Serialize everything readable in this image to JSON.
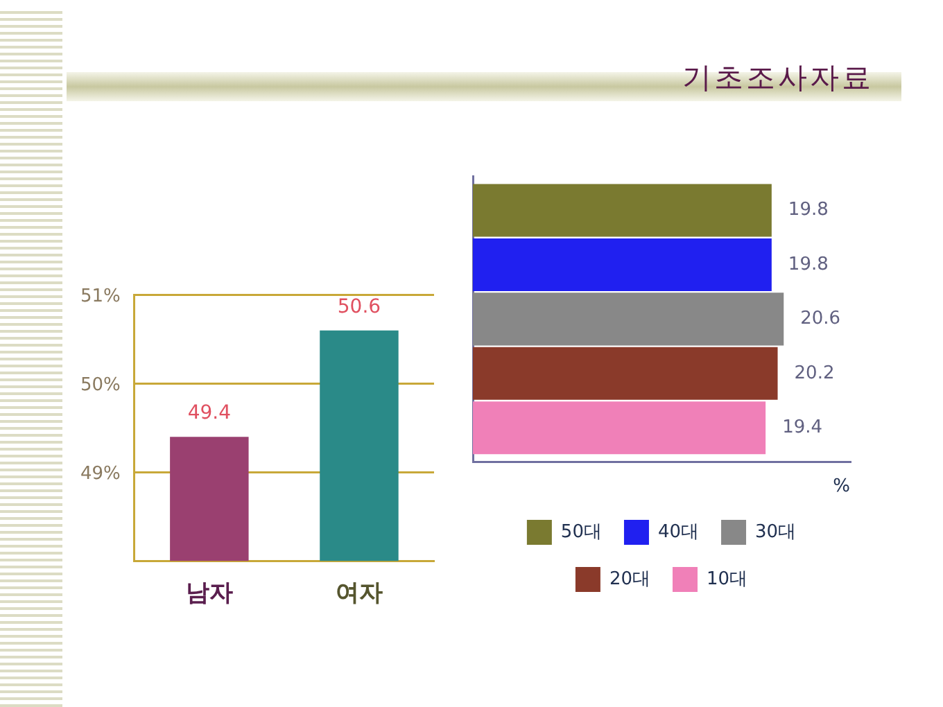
{
  "chart_data": [
    {
      "type": "bar",
      "categories": [
        "남자",
        "여자"
      ],
      "values": [
        49.4,
        50.6
      ],
      "colors": [
        "#9a4070",
        "#2a8a88"
      ],
      "ylim": [
        48,
        51
      ],
      "yticks": [
        {
          "value": 49,
          "label": "49%"
        },
        {
          "value": 50,
          "label": "50%"
        },
        {
          "value": 51,
          "label": "51%"
        }
      ],
      "grid": "y",
      "data_labels": true
    },
    {
      "type": "bar",
      "orientation": "horizontal",
      "title": "기초조사자료",
      "categories": [
        null
      ],
      "series": [
        {
          "name": "50대",
          "color": "#7a7a30",
          "values": [
            19.8
          ]
        },
        {
          "name": "40대",
          "color": "#2020f0",
          "values": [
            19.8
          ]
        },
        {
          "name": "30대",
          "color": "#888888",
          "values": [
            20.6
          ]
        },
        {
          "name": "20대",
          "color": "#8a3a2a",
          "values": [
            20.2
          ]
        },
        {
          "name": "10대",
          "color": "#f080b8",
          "values": [
            19.4
          ]
        }
      ],
      "xlabel": "%",
      "data_labels": true,
      "legend": "bottom",
      "tick_labels": false
    }
  ]
}
